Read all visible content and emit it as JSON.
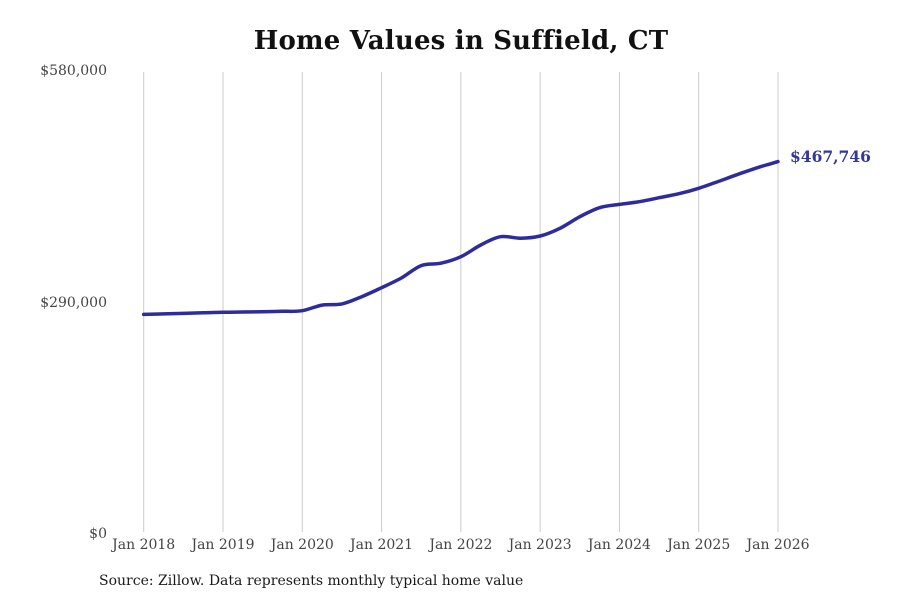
{
  "title": "Home Values in Suffield, CT",
  "source_note": "Source: Zillow. Data represents monthly typical home value",
  "colors": {
    "line": "#2e2b9d",
    "end_label": "#34379b",
    "grid": "#cccccc",
    "tick": "#444444",
    "title": "#111111",
    "source": "#1a1a1a"
  },
  "chart_data": {
    "type": "line",
    "title": "Home Values in Suffield, CT",
    "xlabel": "",
    "ylabel": "",
    "legend": "none",
    "grid": "vertical-only",
    "ylim": [
      0,
      580000
    ],
    "xlim": [
      2018,
      2026
    ],
    "y_ticks": [
      {
        "label": "$580,000",
        "value": 580000
      },
      {
        "label": "$290,000",
        "value": 290000
      },
      {
        "label": "$0",
        "value": 0
      }
    ],
    "x_tick_labels": [
      "Jan 2018",
      "Jan 2019",
      "Jan 2020",
      "Jan 2021",
      "Jan 2022",
      "Jan 2023",
      "Jan 2024",
      "Jan 2025",
      "Jan 2026"
    ],
    "x": [
      2018.0,
      2018.25,
      2018.5,
      2018.75,
      2019.0,
      2019.25,
      2019.5,
      2019.75,
      2020.0,
      2020.25,
      2020.5,
      2020.75,
      2021.0,
      2021.25,
      2021.5,
      2021.75,
      2022.0,
      2022.25,
      2022.5,
      2022.75,
      2023.0,
      2023.25,
      2023.5,
      2023.75,
      2024.0,
      2024.25,
      2024.5,
      2024.75,
      2025.0,
      2025.25,
      2025.5,
      2025.75,
      2026.0
    ],
    "series": [
      {
        "name": "Typical home value (monthly)",
        "values": [
          276400,
          277000,
          277600,
          278300,
          279000,
          279300,
          279700,
          280200,
          281000,
          288000,
          289500,
          298500,
          309800,
          322000,
          337500,
          340500,
          348600,
          363300,
          373700,
          371800,
          374500,
          384200,
          398700,
          410000,
          414200,
          417500,
          422500,
          427500,
          434300,
          443000,
          452000,
          460500,
          467746
        ]
      }
    ],
    "end_annotation": "$467,746",
    "latest_value": 467746
  }
}
